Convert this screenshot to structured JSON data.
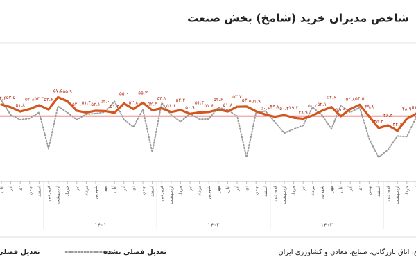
{
  "chart_data": {
    "type": "line",
    "title": "شاخص مدیران خرید (شامخ) بخش صنعت",
    "categories": [
      "آبان",
      "آذر",
      "دی",
      "بهمن",
      "اسفند",
      "فروردین",
      "اردیبهشت",
      "خرداد",
      "تیر",
      "مرداد",
      "شهریور",
      "مهر",
      "آبان",
      "آذر",
      "دی",
      "بهمن",
      "اسفند",
      "فروردین",
      "اردیبهشت",
      "خرداد",
      "تیر",
      "مرداد",
      "شهریور",
      "مهر",
      "آبان",
      "آذر",
      "دی",
      "بهمن",
      "اسفند",
      "فروردین",
      "اردیبهشت",
      "خرداد",
      "تیر",
      "مرداد",
      "شهریور",
      "مهر",
      "آبان",
      "آذر",
      "دی",
      "بهمن",
      "اسفند",
      "فروردین",
      "اردیبهشت",
      "خرداد",
      "تیر"
    ],
    "year_groups": [
      {
        "label": "۱۴۰۱",
        "from": 5,
        "to": 16
      },
      {
        "label": "۱۴۰۲",
        "from": 17,
        "to": 28
      },
      {
        "label": "۱۴۰۳",
        "from": 29,
        "to": 40
      }
    ],
    "series": [
      {
        "name": "تعدیل فصلی شده",
        "color": "#d2561e",
        "values": [
          54.6,
          53.5,
          51.8,
          52.8,
          54.3,
          52.6,
          57.5,
          55.9,
          52.1,
          51.4,
          52.1,
          52.0,
          51.3,
          55.0,
          52.8,
          55.3,
          52.3,
          53.1,
          51.6,
          52.4,
          50.9,
          51.4,
          51.6,
          52.6,
          51.8,
          53.7,
          53.8,
          51.9,
          50.6,
          49.7,
          50.4,
          49.3,
          48.9,
          50.2,
          52.1,
          53.6,
          49.9,
          52.8,
          54.5,
          49.8,
          45.2,
          46.3,
          44.1,
          48.9,
          51.0
        ],
        "value_labels": [
          "۵۴.۶",
          "۵۳.۵",
          "۵۱.۸",
          "۵۲.۸",
          "۵۴.۳",
          "۵۲.۶",
          "۵۷.۵",
          "۵۵.۹",
          "۵۲.۱",
          "۵۱.۴",
          "۵۲.۱",
          "۵۲.۰",
          "۵۱.۳",
          "۵۵.۰",
          "۵۲.۸",
          "۵۵.۳",
          "۵۲.۳",
          "۵۳.۱",
          "۵۱.۶",
          "۵۲.۴",
          "۵۰.۹",
          "۵۱.۴",
          "۵۱.۶",
          "۵۲.۶",
          "۵۱.۸",
          "۵۳.۷",
          "۵۳.۸",
          "۵۱.۹",
          "۵۰.۶",
          "۴۹.۷",
          "۵۰.۴",
          "۴۹.۳",
          "۴۸.۹",
          "۵۰.۲",
          "۵۲.۱",
          "۵۳.۶",
          "۴۹.۹",
          "۵۲.۸",
          "۵۴.۵",
          "۴۹.۸",
          "۴۵.۲",
          "۴۶.۳",
          "۴۴.۱",
          "۴۸.۹",
          "۵۱.۰"
        ]
      },
      {
        "name": "تعدیل فصلی نشده",
        "color": "#9a9a9a",
        "dotted": true,
        "values": [
          56.2,
          50.4,
          48.5,
          49.0,
          51.5,
          37.0,
          53.9,
          51.4,
          48.5,
          50.7,
          51.0,
          51.6,
          55.9,
          48.6,
          45.6,
          52.6,
          35.6,
          55.3,
          50.5,
          47.7,
          51.0,
          48.7,
          48.8,
          53.4,
          52.4,
          50.0,
          33.5,
          51.2,
          52.0,
          47.6,
          43.2,
          44.8,
          46.2,
          53.5,
          50.4,
          44.8,
          54.2,
          51.5,
          53.4,
          40.9,
          33.5,
          36.5,
          42.0,
          41.8,
          49.6
        ]
      }
    ],
    "reference_line": 50,
    "reference_color": "#e0201c",
    "ylim": [
      32,
      64
    ],
    "source": "منبع: اتاق بازرگانی، صنایع، معادن و کشاورزی ایران (ICCIMA)"
  }
}
